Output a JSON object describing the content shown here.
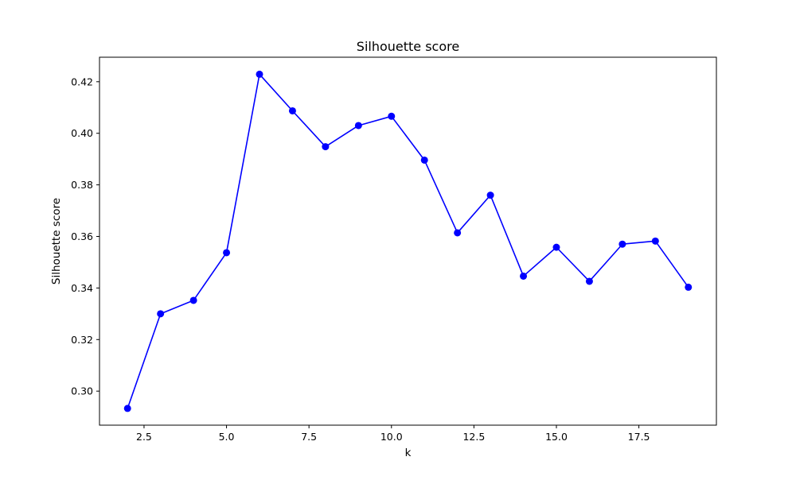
{
  "chart_data": {
    "type": "line",
    "title": "Silhouette score",
    "xlabel": "k",
    "ylabel": "Silhouette score",
    "x": [
      2,
      3,
      4,
      5,
      6,
      7,
      8,
      9,
      10,
      11,
      12,
      13,
      14,
      15,
      16,
      17,
      18,
      19
    ],
    "series": [
      {
        "values": [
          0.2933,
          0.33,
          0.3352,
          0.3537,
          0.4229,
          0.4087,
          0.3948,
          0.403,
          0.4066,
          0.3896,
          0.3614,
          0.376,
          0.3446,
          0.3558,
          0.3426,
          0.357,
          0.3582,
          0.3403
        ],
        "color": "#0000ff",
        "marker": "circle"
      }
    ],
    "xlim": [
      1.15,
      19.85
    ],
    "ylim": [
      0.2868,
      0.4295
    ],
    "xticks": [
      2.5,
      5.0,
      7.5,
      10.0,
      12.5,
      15.0,
      17.5
    ],
    "xtick_labels": [
      "2.5",
      "5.0",
      "7.5",
      "10.0",
      "12.5",
      "15.0",
      "17.5"
    ],
    "yticks": [
      0.3,
      0.32,
      0.34,
      0.36,
      0.38,
      0.4,
      0.42
    ],
    "ytick_labels": [
      "0.30",
      "0.32",
      "0.34",
      "0.36",
      "0.38",
      "0.40",
      "0.42"
    ],
    "grid": false,
    "legend": false
  }
}
